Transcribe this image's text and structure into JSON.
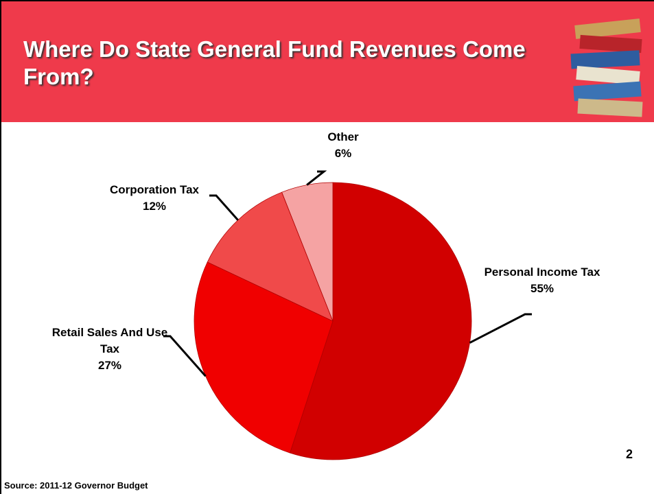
{
  "chart_data": {
    "type": "pie",
    "title": "Where Do State General Fund Revenues Come From?",
    "categories": [
      "Personal Income Tax",
      "Retail Sales And Use Tax",
      "Corporation Tax",
      "Other"
    ],
    "values": [
      55,
      27,
      12,
      6
    ],
    "value_labels": [
      "55%",
      "27%",
      "12%",
      "6%"
    ],
    "colors": [
      "#d10000",
      "#f00000",
      "#f04a4a",
      "#f5a3a3"
    ]
  },
  "footer": {
    "source": "Source:  2011-12 Governor Budget",
    "page_number": "2"
  }
}
